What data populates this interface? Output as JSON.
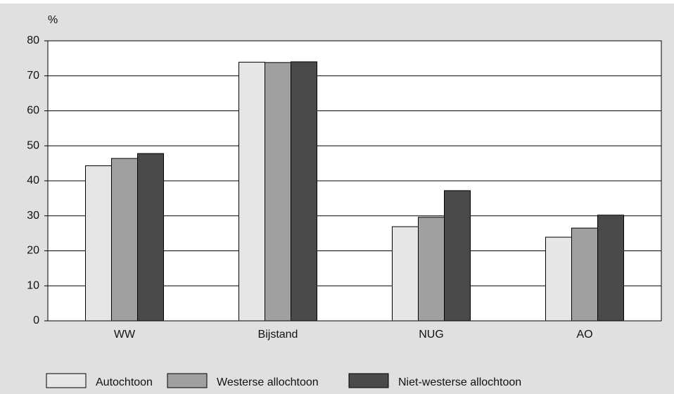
{
  "chart_data": {
    "type": "bar",
    "y_unit": "%",
    "categories": [
      "WW",
      "Bijstand",
      "NUG",
      "AO"
    ],
    "series": [
      {
        "name": "Autochtoon",
        "color": "#e6e6e6",
        "values": [
          44.3,
          73.9,
          26.9,
          23.9
        ]
      },
      {
        "name": "Westerse allochtoon",
        "color": "#a0a0a0",
        "values": [
          46.4,
          73.8,
          29.6,
          26.5
        ]
      },
      {
        "name": "Niet-westerse allochtoon",
        "color": "#4a4a4d",
        "values": [
          47.8,
          74.0,
          37.2,
          30.2
        ]
      }
    ],
    "ylim": [
      0,
      80
    ],
    "yticks": [
      0,
      10,
      20,
      30,
      40,
      50,
      60,
      70,
      80
    ],
    "grid": true,
    "legend": "bottom"
  }
}
